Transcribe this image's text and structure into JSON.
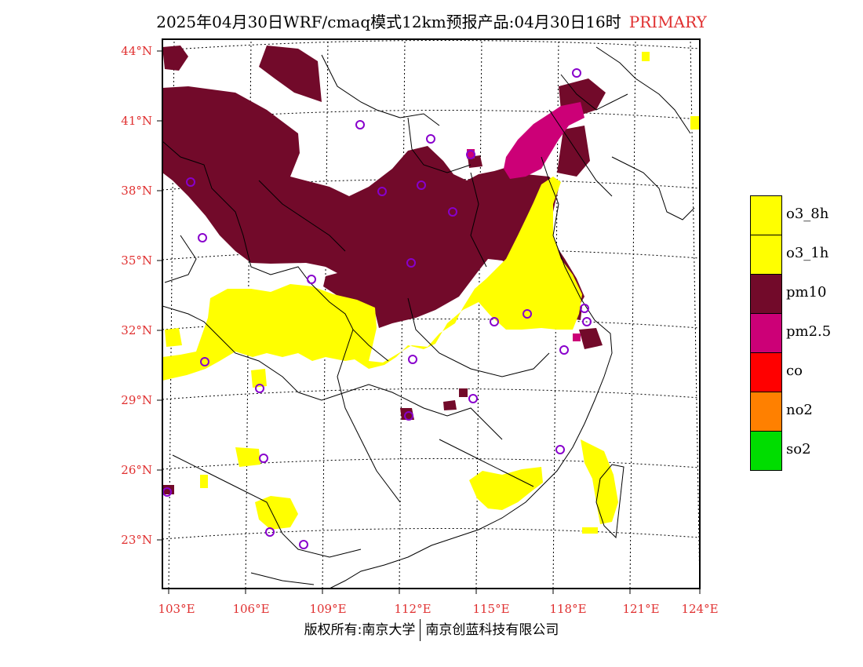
{
  "title": {
    "text": "2025年04月30日WRF/cmaq模式12km预报产品:04月30日16时",
    "tag": "PRIMARY"
  },
  "map": {
    "lat_labels": [
      "44°N",
      "41°N",
      "38°N",
      "35°N",
      "32°N",
      "29°N",
      "26°N",
      "23°N"
    ],
    "lon_labels": [
      "103°E",
      "106°E",
      "109°E",
      "112°E",
      "115°E",
      "118°E",
      "121°E",
      "124°E"
    ],
    "colors": {
      "pm10": "#720a2a",
      "pm25": "#cc0077",
      "o3": "#ffff00",
      "co": "#ff0000",
      "no2": "#ff8000",
      "so2": "#00dd00",
      "station": "#8800cc",
      "label": "#e03030"
    }
  },
  "legend": [
    {
      "label": "o3_8h",
      "color": "#ffff00"
    },
    {
      "label": "o3_1h",
      "color": "#ffff00"
    },
    {
      "label": "pm10",
      "color": "#720a2a"
    },
    {
      "label": "pm2.5",
      "color": "#cc0077"
    },
    {
      "label": "co",
      "color": "#ff0000"
    },
    {
      "label": "no2",
      "color": "#ff8000"
    },
    {
      "label": "so2",
      "color": "#00dd00"
    }
  ],
  "footer": {
    "left": "版权所有:南京大学",
    "right": "南京创蓝科技有限公司"
  }
}
